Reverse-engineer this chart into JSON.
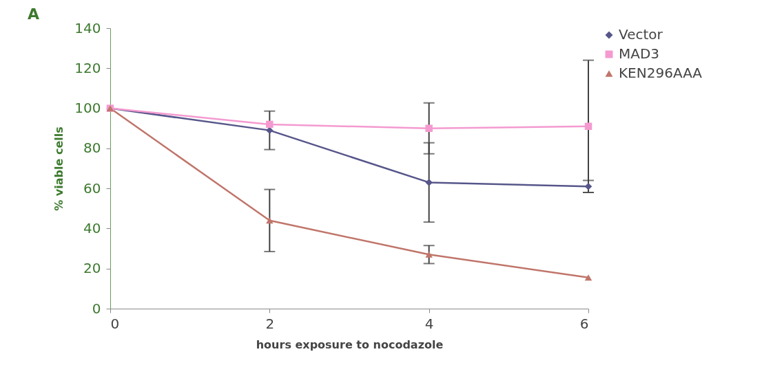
{
  "chart_data": {
    "type": "line",
    "xlabel": "hours exposure to nocodazole",
    "ylabel": "% viable cells",
    "annotations": [
      "A"
    ],
    "x": [
      0,
      2,
      4,
      6
    ],
    "series": [
      {
        "name": "Vector",
        "color": "#56568a",
        "marker": "diamond",
        "values": [
          100,
          89,
          63,
          61
        ],
        "errors": [
          null,
          9.6,
          19.8,
          3
        ]
      },
      {
        "name": "MAD3",
        "color": "#f49ad0",
        "marker": "square",
        "values": [
          100,
          92,
          90,
          91
        ],
        "errors": [
          null,
          null,
          12.7,
          33
        ]
      },
      {
        "name": "KEN296AAA",
        "color": "#c0756a",
        "marker": "triangle",
        "values": [
          100,
          44,
          27,
          15.5
        ],
        "errors": [
          null,
          15.5,
          4.5,
          null
        ]
      }
    ],
    "xlim": [
      0,
      6
    ],
    "xticks": [
      0,
      2,
      4,
      6
    ],
    "ylim": [
      0,
      140
    ],
    "yticks": [
      0,
      20,
      40,
      60,
      80,
      100,
      120,
      140
    ],
    "grid": false,
    "legend": "right",
    "line_style": "solid"
  }
}
